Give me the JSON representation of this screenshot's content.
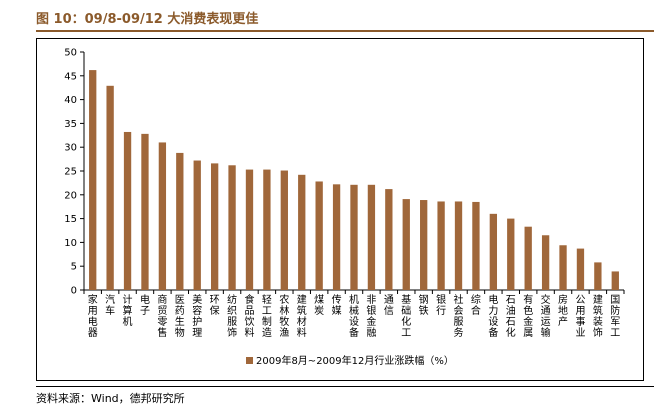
{
  "figure": {
    "title": "图 10：09/8-09/12 大消费表现更佳",
    "source": "资料来源：Wind，德邦研究所"
  },
  "colors": {
    "bar": "#a0673a",
    "accent": "#8b5a2b",
    "axis": "#000000"
  },
  "chart_data": {
    "type": "bar",
    "title": "",
    "xlabel": "",
    "ylabel": "",
    "ylim": [
      0,
      50
    ],
    "yticks": [
      0,
      5,
      10,
      15,
      20,
      25,
      30,
      35,
      40,
      45,
      50
    ],
    "grid": false,
    "legend_position": "bottom",
    "categories": [
      "家用电器",
      "汽车",
      "计算机",
      "电子",
      "商贸零售",
      "医药生物",
      "美容护理",
      "环保",
      "纺织服饰",
      "食品饮料",
      "轻工制造",
      "农林牧渔",
      "建筑材料",
      "煤炭",
      "传媒",
      "机械设备",
      "非银金融",
      "通信",
      "基础化工",
      "钢铁",
      "银行",
      "社会服务",
      "综合",
      "电力设备",
      "石油石化",
      "有色金属",
      "交通运输",
      "房地产",
      "公用事业",
      "建筑装饰",
      "国防军工"
    ],
    "series": [
      {
        "name": "2009年8月~2009年12月行业涨跌幅（%）",
        "values": [
          46.2,
          42.9,
          33.2,
          32.8,
          31.0,
          28.8,
          27.2,
          26.6,
          26.2,
          25.3,
          25.3,
          25.1,
          24.2,
          22.8,
          22.2,
          22.1,
          22.1,
          21.2,
          19.1,
          18.9,
          18.6,
          18.6,
          18.5,
          16.0,
          15.0,
          13.3,
          11.5,
          9.4,
          8.7,
          5.8,
          3.9
        ]
      }
    ]
  }
}
